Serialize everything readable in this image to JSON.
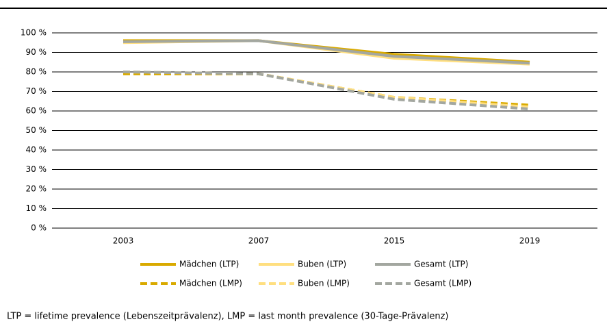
{
  "chart_data": {
    "type": "line",
    "categories": [
      "2003",
      "2007",
      "2015",
      "2019"
    ],
    "series": [
      {
        "name": "Mädchen (LTP)",
        "color": "#d9aa00",
        "style": "solid",
        "values": [
          96,
          96,
          89,
          85
        ]
      },
      {
        "name": "Buben (LTP)",
        "color": "#ffdf80",
        "style": "solid",
        "values": [
          95,
          96,
          87,
          84
        ]
      },
      {
        "name": "Gesamt (LTP)",
        "color": "#a3a7a0",
        "style": "solid",
        "values": [
          95.5,
          96,
          88,
          84.5
        ]
      },
      {
        "name": "Mädchen (LMP)",
        "color": "#d9aa00",
        "style": "dashed",
        "values": [
          79,
          79,
          67,
          63
        ]
      },
      {
        "name": "Buben (LMP)",
        "color": "#ffdf80",
        "style": "dashed",
        "values": [
          80,
          79,
          67,
          62
        ]
      },
      {
        "name": "Gesamt (LMP)",
        "color": "#a3a7a0",
        "style": "dashed",
        "values": [
          80,
          79,
          66,
          61
        ]
      }
    ],
    "ylim": [
      0,
      100
    ],
    "yticks": [
      {
        "value": 0,
        "label": "0 %"
      },
      {
        "value": 10,
        "label": "10 %"
      },
      {
        "value": 20,
        "label": "20 %"
      },
      {
        "value": 30,
        "label": "30 %"
      },
      {
        "value": 40,
        "label": "40 %"
      },
      {
        "value": 50,
        "label": "50 %"
      },
      {
        "value": 60,
        "label": "60 %"
      },
      {
        "value": 70,
        "label": "70 %"
      },
      {
        "value": 80,
        "label": "80 %"
      },
      {
        "value": 90,
        "label": "90 %"
      },
      {
        "value": 100,
        "label": "100 %"
      }
    ],
    "grid": true,
    "footnote": "LTP = lifetime prevalence (Lebenszeitprävalenz), LMP = last month prevalence (30-Tage-Prävalenz)"
  }
}
